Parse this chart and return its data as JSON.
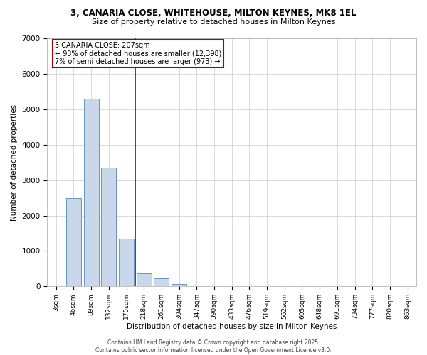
{
  "title_line1": "3, CANARIA CLOSE, WHITEHOUSE, MILTON KEYNES, MK8 1EL",
  "title_line2": "Size of property relative to detached houses in Milton Keynes",
  "xlabel": "Distribution of detached houses by size in Milton Keynes",
  "ylabel": "Number of detached properties",
  "annotation_line1": "3 CANARIA CLOSE: 207sqm",
  "annotation_line2": "← 93% of detached houses are smaller (12,398)",
  "annotation_line3": "7% of semi-detached houses are larger (973) →",
  "categories": [
    "3sqm",
    "46sqm",
    "89sqm",
    "132sqm",
    "175sqm",
    "218sqm",
    "261sqm",
    "304sqm",
    "347sqm",
    "390sqm",
    "433sqm",
    "476sqm",
    "519sqm",
    "562sqm",
    "605sqm",
    "648sqm",
    "691sqm",
    "734sqm",
    "777sqm",
    "820sqm",
    "863sqm"
  ],
  "values": [
    10,
    2500,
    5300,
    3350,
    1350,
    370,
    230,
    60,
    10,
    0,
    0,
    0,
    0,
    0,
    0,
    0,
    0,
    0,
    0,
    0,
    0
  ],
  "bar_color": "#c8d8ea",
  "bar_edge_color": "#5588bb",
  "vline_color": "#990000",
  "vline_x_idx": 5,
  "ylim": [
    0,
    7000
  ],
  "yticks": [
    0,
    1000,
    2000,
    3000,
    4000,
    5000,
    6000,
    7000
  ],
  "annotation_box_color": "#aa0000",
  "background_color": "#ffffff",
  "footer_line1": "Contains HM Land Registry data © Crown copyright and database right 2025.",
  "footer_line2": "Contains public sector information licensed under the Open Government Licence v3.0."
}
